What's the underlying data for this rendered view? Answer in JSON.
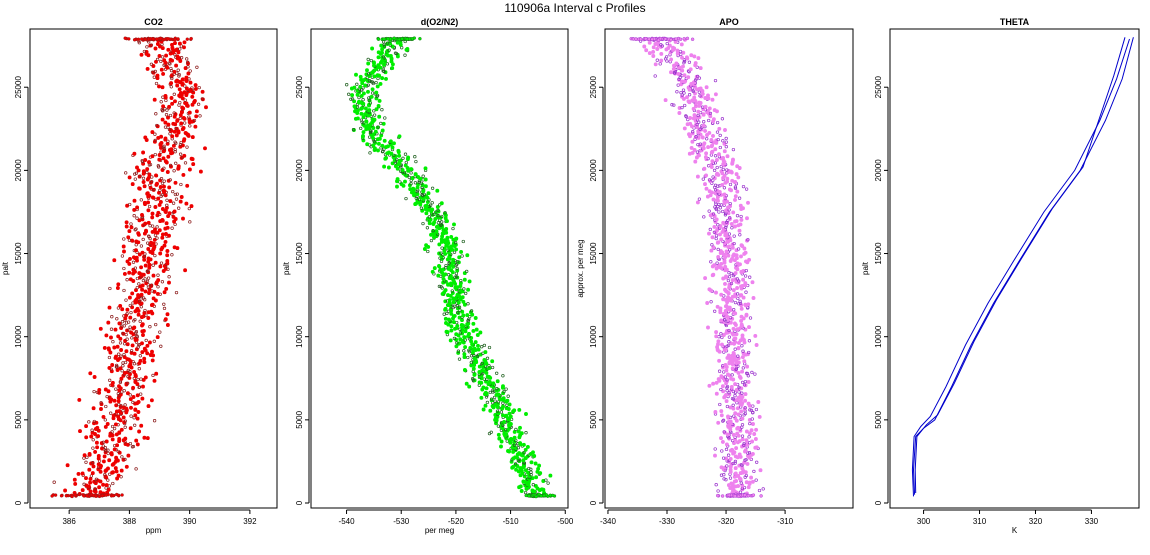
{
  "figure": {
    "title": "110906a   Interval c Profiles"
  },
  "chart_data": [
    {
      "type": "scatter",
      "title": "CO2",
      "xlabel": "ppm",
      "ylabel": "palt",
      "xlim": [
        384.7,
        392.9
      ],
      "ylim": [
        -300,
        28500
      ],
      "xticks": [
        386,
        388,
        390,
        392
      ],
      "yticks": [
        0,
        5000,
        10000,
        15000,
        20000,
        25000
      ],
      "grid": false,
      "colors": {
        "dense": "#ee0000",
        "sparse": "#8b1a1a"
      },
      "profile": {
        "altitudes": [
          450,
          2500,
          5000,
          7500,
          10000,
          12500,
          15000,
          17500,
          20000,
          22500,
          25000,
          27900
        ],
        "center": [
          386.6,
          387.2,
          387.6,
          387.9,
          388.1,
          388.3,
          388.6,
          388.9,
          389.0,
          389.6,
          389.7,
          389.0
        ],
        "spread": [
          1.3,
          1.3,
          1.3,
          1.2,
          1.2,
          1.3,
          1.3,
          1.3,
          1.2,
          1.0,
          1.1,
          1.2
        ]
      }
    },
    {
      "type": "scatter",
      "title": "d(O2/N2)",
      "xlabel": "per meg",
      "ylabel": "palt",
      "xlim": [
        -546.5,
        -499.5
      ],
      "ylim": [
        -300,
        28500
      ],
      "xticks": [
        -540,
        -530,
        -520,
        -510,
        -500
      ],
      "yticks": [
        0,
        5000,
        10000,
        15000,
        20000,
        25000
      ],
      "grid": false,
      "colors": {
        "dense": "#00ee00",
        "sparse": "#1f5f1f"
      },
      "profile": {
        "altitudes": [
          450,
          2500,
          5000,
          7500,
          10000,
          12500,
          15000,
          17500,
          20000,
          22500,
          25000,
          27900
        ],
        "center": [
          -505.0,
          -507.5,
          -511.5,
          -514.5,
          -518.5,
          -520.5,
          -521.5,
          -524.0,
          -529.0,
          -536.0,
          -536.5,
          -530.5
        ],
        "spread": [
          3.0,
          3.5,
          4.0,
          4.0,
          4.0,
          4.0,
          4.0,
          4.0,
          4.0,
          4.0,
          4.0,
          4.0
        ]
      }
    },
    {
      "type": "scatter",
      "title": "APO",
      "xlabel": "",
      "ylabel": "approx. per meg",
      "xlim": [
        -340.5,
        -298.5
      ],
      "ylim": [
        -300,
        28500
      ],
      "xticks": [
        -340,
        -330,
        -320,
        -310
      ],
      "yticks": [
        0,
        5000,
        10000,
        15000,
        20000,
        25000
      ],
      "grid": false,
      "colors": {
        "dense": "#ee82ee",
        "sparse": "#9a32cd"
      },
      "profile": {
        "altitudes": [
          450,
          2500,
          5000,
          7500,
          10000,
          12500,
          15000,
          17500,
          20000,
          22500,
          25000,
          27900
        ],
        "center": [
          -318.0,
          -318.0,
          -318.0,
          -318.5,
          -319.0,
          -319.0,
          -319.5,
          -320.0,
          -321.0,
          -323.5,
          -326.0,
          -331.0
        ],
        "spread": [
          4.0,
          4.5,
          4.5,
          4.5,
          4.5,
          4.5,
          4.5,
          4.5,
          4.5,
          4.5,
          4.5,
          5.5
        ]
      }
    },
    {
      "type": "line",
      "title": "THETA",
      "xlabel": "K",
      "ylabel": "palt",
      "xlim": [
        294,
        338.5
      ],
      "ylim": [
        -300,
        28500
      ],
      "xticks": [
        300,
        310,
        320,
        330
      ],
      "yticks": [
        0,
        5000,
        10000,
        15000,
        20000,
        25000
      ],
      "grid": false,
      "colors": {
        "line": "#0000cc"
      },
      "series": [
        {
          "x": [
            298.2,
            298.0,
            298.3,
            299.5,
            301.2,
            304.0,
            307.5,
            311.5,
            316.0,
            321.5,
            327.0,
            331.5,
            334.5,
            336.8
          ],
          "y": [
            400,
            2000,
            4000,
            4600,
            5200,
            7000,
            9500,
            12000,
            14500,
            17500,
            20000,
            23000,
            25500,
            27900
          ]
        },
        {
          "x": [
            298.4,
            298.2,
            298.6,
            300.0,
            302.0,
            305.0,
            308.5,
            312.5,
            317.0,
            322.5,
            328.0,
            332.5,
            335.5,
            337.5
          ],
          "y": [
            500,
            2000,
            4000,
            4500,
            5000,
            7000,
            9500,
            12000,
            14500,
            17500,
            20000,
            23000,
            25500,
            28000
          ]
        },
        {
          "x": [
            298.6,
            298.5,
            298.8,
            300.5,
            302.5,
            305.5,
            309.0,
            313.0,
            317.5,
            323.0,
            328.5,
            331.5,
            334.0,
            336.0
          ],
          "y": [
            600,
            2000,
            4000,
            4700,
            5300,
            7200,
            9700,
            12200,
            14700,
            17700,
            20200,
            23200,
            25700,
            28000
          ]
        }
      ]
    }
  ]
}
